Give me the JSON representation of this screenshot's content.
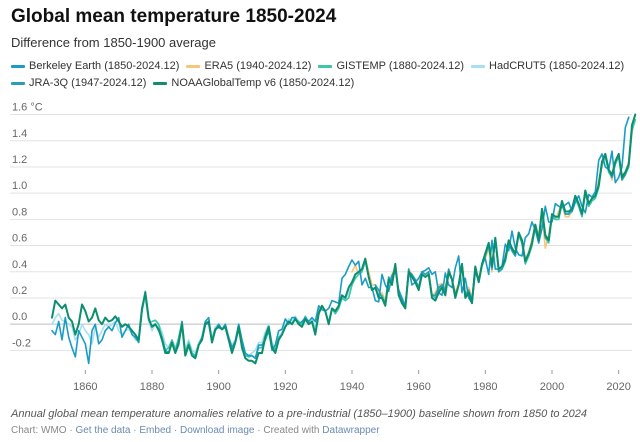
{
  "header": {
    "title": "Global mean temperature 1850-2024",
    "subtitle": "Difference from 1850-1900 average"
  },
  "caption": "Annual global mean temperature anomalies relative to a pre-industrial (1850–1900) baseline shown from 1850 to 2024",
  "footer": {
    "source": "Chart: WMO",
    "sep": " · ",
    "get_data": "Get the data",
    "embed": "Embed",
    "download": "Download image",
    "created": "Created with ",
    "datawrapper": "Datawrapper"
  },
  "colors": {
    "berkeley": "#1a9cc7",
    "era5": "#f7c57a",
    "gistemp": "#3cc5a6",
    "hadcrut": "#a7dff2",
    "jra": "#2a9fb0",
    "noaa": "#0c8f6e",
    "grid": "#e3e3e3",
    "axis_text": "#666666"
  },
  "chart_data": {
    "type": "line",
    "ylabel": "°C",
    "xlim": [
      1850,
      2024
    ],
    "ylim": [
      -0.35,
      1.65
    ],
    "x_ticks": [
      1860,
      1880,
      1900,
      1920,
      1940,
      1960,
      1980,
      2000,
      2020
    ],
    "y_ticks": [
      {
        "value": 1.6,
        "label": "1.6 °C"
      },
      {
        "value": 1.4,
        "label": "1.4"
      },
      {
        "value": 1.2,
        "label": "1.2"
      },
      {
        "value": 1.0,
        "label": "1.0"
      },
      {
        "value": 0.8,
        "label": "0.8"
      },
      {
        "value": 0.6,
        "label": "0.6"
      },
      {
        "value": 0.4,
        "label": "0.4"
      },
      {
        "value": 0.2,
        "label": "0.2"
      },
      {
        "value": 0.0,
        "label": "0.0"
      },
      {
        "value": -0.2,
        "label": "-0.2"
      }
    ],
    "grid": true,
    "legend_position": "top",
    "series": [
      {
        "name": "Berkeley Earth (1850-2024.12)",
        "color_key": "berkeley",
        "start": 1850,
        "values": [
          -0.05,
          -0.08,
          0.02,
          -0.12,
          0.05,
          -0.1,
          -0.18,
          -0.25,
          -0.05,
          -0.1,
          -0.15,
          -0.3,
          -0.05,
          0.0,
          -0.15,
          -0.12,
          -0.05,
          -0.02,
          -0.05,
          0.01,
          0.05,
          -0.1,
          -0.05,
          0.0,
          -0.08,
          -0.1,
          -0.14,
          0.1,
          0.25,
          0.05,
          -0.02,
          0.0,
          -0.05,
          -0.1,
          -0.2,
          -0.22,
          -0.14,
          -0.22,
          -0.16,
          0.02,
          -0.24,
          -0.16,
          -0.24,
          -0.25,
          -0.16,
          -0.1,
          0.02,
          0.05,
          -0.14,
          -0.05,
          0.0,
          -0.04,
          0.0,
          -0.1,
          -0.18,
          -0.13,
          0.0,
          -0.12,
          -0.22,
          -0.24,
          -0.24,
          -0.26,
          -0.16,
          -0.16,
          -0.12,
          -0.05,
          -0.2,
          -0.16,
          -0.05,
          -0.04,
          0.04,
          0.0,
          0.05,
          0.05,
          0.0,
          0.02,
          0.05,
          0.02,
          0.05,
          0.02,
          0.14,
          0.11,
          0.1,
          0.12,
          0.18,
          0.17,
          0.16,
          0.35,
          0.38,
          0.44,
          0.49,
          0.45,
          0.48,
          0.3,
          0.35,
          0.28,
          0.28,
          0.18,
          0.17,
          0.38,
          0.3,
          0.25,
          0.37,
          0.42,
          0.26,
          0.2,
          0.12,
          0.42,
          0.3,
          0.32,
          0.35,
          0.4,
          0.41,
          0.43,
          0.38,
          0.4,
          0.24,
          0.22,
          0.39,
          0.3,
          0.28,
          0.43,
          0.52,
          0.24,
          0.35,
          0.2,
          0.16,
          0.4,
          0.33,
          0.46,
          0.5,
          0.38,
          0.64,
          0.42,
          0.42,
          0.44,
          0.61,
          0.56,
          0.71,
          0.58,
          0.53,
          0.52,
          0.66,
          0.69,
          0.78,
          0.72,
          0.62,
          0.73,
          0.9,
          0.78,
          0.78,
          0.92,
          0.9,
          0.89,
          0.91,
          0.93,
          0.86,
          0.93,
          0.98,
          0.9,
          0.85,
          0.99,
          0.97,
          1.01,
          1.25,
          1.3,
          1.2,
          1.18,
          1.32,
          1.08,
          1.12,
          1.2,
          1.5,
          1.58
        ]
      },
      {
        "name": "ERA5 (1940-2024.12)",
        "color_key": "era5",
        "start": 1940,
        "values": [
          0.4,
          0.45,
          0.38,
          0.42,
          0.5,
          0.4,
          0.3,
          0.3,
          0.22,
          0.24,
          0.18,
          0.33,
          0.38,
          0.44,
          0.26,
          0.2,
          0.14,
          0.42,
          0.38,
          0.34,
          0.28,
          0.4,
          0.38,
          0.4,
          0.22,
          0.24,
          0.3,
          0.31,
          0.28,
          0.42,
          0.35,
          0.24,
          0.31,
          0.45,
          0.22,
          0.28,
          0.2,
          0.43,
          0.34,
          0.46,
          0.5,
          0.58,
          0.4,
          0.65,
          0.42,
          0.44,
          0.52,
          0.62,
          0.58,
          0.52,
          0.68,
          0.62,
          0.5,
          0.55,
          0.65,
          0.76,
          0.68,
          0.84,
          0.58,
          0.68,
          0.82,
          0.8,
          0.86,
          0.92,
          0.82,
          0.82,
          0.86,
          0.96,
          0.9,
          0.84,
          1.0,
          0.9,
          0.94,
          0.98,
          1.1,
          1.2,
          1.28,
          1.18,
          1.1,
          1.25,
          1.3,
          1.14,
          1.16,
          1.24,
          1.46,
          1.6
        ]
      },
      {
        "name": "GISTEMP (1880-2024.12)",
        "color_key": "gistemp",
        "start": 1880,
        "values": [
          0.02,
          0.03,
          0.0,
          -0.1,
          -0.2,
          -0.18,
          -0.12,
          -0.2,
          -0.1,
          0.02,
          -0.22,
          -0.14,
          -0.22,
          -0.24,
          -0.16,
          -0.12,
          0.0,
          0.0,
          -0.12,
          -0.04,
          0.0,
          -0.04,
          -0.02,
          -0.12,
          -0.2,
          -0.14,
          -0.04,
          -0.16,
          -0.24,
          -0.25,
          -0.24,
          -0.26,
          -0.18,
          -0.18,
          -0.08,
          -0.02,
          -0.16,
          -0.2,
          -0.1,
          -0.08,
          -0.02,
          0.02,
          0.0,
          0.04,
          0.02,
          0.0,
          0.06,
          0.0,
          0.02,
          -0.06,
          0.1,
          0.14,
          0.1,
          0.0,
          0.12,
          0.08,
          0.12,
          0.2,
          0.18,
          0.2,
          0.3,
          0.35,
          0.38,
          0.4,
          0.48,
          0.36,
          0.26,
          0.28,
          0.22,
          0.22,
          0.16,
          0.34,
          0.3,
          0.44,
          0.22,
          0.18,
          0.14,
          0.4,
          0.36,
          0.32,
          0.28,
          0.38,
          0.36,
          0.38,
          0.22,
          0.2,
          0.26,
          0.3,
          0.24,
          0.4,
          0.34,
          0.22,
          0.3,
          0.44,
          0.22,
          0.25,
          0.18,
          0.42,
          0.32,
          0.44,
          0.52,
          0.6,
          0.44,
          0.64,
          0.4,
          0.42,
          0.48,
          0.62,
          0.56,
          0.52,
          0.68,
          0.62,
          0.46,
          0.52,
          0.6,
          0.74,
          0.62,
          0.86,
          0.66,
          0.62,
          0.82,
          0.8,
          0.8,
          0.92,
          0.84,
          0.84,
          0.86,
          0.96,
          0.9,
          0.82,
          1.0,
          0.9,
          0.94,
          0.96,
          1.04,
          1.22,
          1.28,
          1.16,
          1.12,
          1.22,
          1.28,
          1.1,
          1.14,
          1.2,
          1.48,
          1.56
        ]
      },
      {
        "name": "HadCRUT5 (1850-2024.12)",
        "color_key": "hadcrut",
        "start": 1850,
        "values": [
          0.0,
          0.05,
          0.08,
          0.03,
          0.02,
          0.0,
          -0.02,
          -0.12,
          -0.08,
          0.0,
          -0.05,
          -0.08,
          -0.15,
          -0.02,
          -0.1,
          -0.05,
          0.0,
          -0.02,
          0.0,
          0.02,
          -0.05,
          -0.08,
          -0.05,
          -0.04,
          -0.07,
          -0.12,
          -0.12,
          0.1,
          0.2,
          0.02,
          -0.05,
          0.0,
          0.0,
          -0.06,
          -0.15,
          -0.18,
          -0.12,
          -0.18,
          -0.12,
          0.02,
          -0.2,
          -0.12,
          -0.2,
          -0.22,
          -0.14,
          -0.1,
          0.02,
          0.02,
          -0.1,
          -0.02,
          0.0,
          -0.04,
          0.0,
          -0.1,
          -0.16,
          -0.12,
          0.0,
          -0.16,
          -0.24,
          -0.24,
          -0.22,
          -0.2,
          -0.14,
          -0.14,
          -0.06,
          0.0,
          -0.14,
          -0.18,
          -0.1,
          -0.06,
          0.0,
          0.04,
          0.02,
          0.06,
          0.02,
          0.0,
          0.06,
          0.02,
          0.04,
          -0.02,
          0.1,
          0.14,
          0.1,
          0.02,
          0.12,
          0.08,
          0.12,
          0.2,
          0.18,
          0.25,
          0.3,
          0.35,
          0.38,
          0.4,
          0.48,
          0.36,
          0.26,
          0.28,
          0.22,
          0.22,
          0.16,
          0.34,
          0.3,
          0.44,
          0.22,
          0.18,
          0.14,
          0.4,
          0.36,
          0.32,
          0.28,
          0.38,
          0.36,
          0.38,
          0.22,
          0.2,
          0.26,
          0.3,
          0.24,
          0.4,
          0.34,
          0.22,
          0.3,
          0.44,
          0.22,
          0.25,
          0.18,
          0.42,
          0.32,
          0.44,
          0.52,
          0.6,
          0.44,
          0.64,
          0.4,
          0.42,
          0.48,
          0.62,
          0.56,
          0.52,
          0.68,
          0.62,
          0.46,
          0.52,
          0.6,
          0.74,
          0.62,
          0.86,
          0.66,
          0.62,
          0.82,
          0.8,
          0.8,
          0.92,
          0.84,
          0.84,
          0.86,
          0.96,
          0.9,
          0.82,
          1.0,
          0.9,
          0.94,
          0.96,
          1.04,
          1.22,
          1.28,
          1.16,
          1.12,
          1.22,
          1.28,
          1.1,
          1.14,
          1.2,
          1.48,
          1.56
        ]
      },
      {
        "name": "JRA-3Q (1947-2024.12)",
        "color_key": "jra",
        "start": 1947,
        "values": [
          0.3,
          0.26,
          0.2,
          0.16,
          0.36,
          0.32,
          0.42,
          0.24,
          0.2,
          0.14,
          0.4,
          0.38,
          0.34,
          0.28,
          0.4,
          0.38,
          0.4,
          0.22,
          0.22,
          0.28,
          0.3,
          0.26,
          0.42,
          0.34,
          0.22,
          0.3,
          0.46,
          0.22,
          0.26,
          0.18,
          0.44,
          0.32,
          0.46,
          0.52,
          0.62,
          0.42,
          0.66,
          0.4,
          0.42,
          0.48,
          0.62,
          0.56,
          0.52,
          0.7,
          0.62,
          0.48,
          0.54,
          0.62,
          0.76,
          0.64,
          0.88,
          0.66,
          0.64,
          0.84,
          0.82,
          0.82,
          0.94,
          0.84,
          0.84,
          0.88,
          0.98,
          0.92,
          0.84,
          1.02,
          0.92,
          0.96,
          0.98,
          1.06,
          1.24,
          1.3,
          1.18,
          1.12,
          1.24,
          1.3,
          1.1,
          1.14,
          1.22,
          1.5
        ]
      },
      {
        "name": "NOAAGlobalTemp v6 (1850-2024.12)",
        "color_key": "noaa",
        "start": 1850,
        "values": [
          0.05,
          0.18,
          0.15,
          0.12,
          0.15,
          0.05,
          0.02,
          -0.08,
          0.0,
          0.15,
          0.1,
          0.02,
          0.05,
          0.12,
          0.03,
          0.0,
          0.05,
          0.02,
          0.03,
          0.06,
          0.02,
          -0.02,
          0.0,
          -0.02,
          -0.05,
          -0.08,
          -0.12,
          0.12,
          0.24,
          0.04,
          -0.02,
          0.0,
          -0.04,
          -0.12,
          -0.22,
          -0.22,
          -0.14,
          -0.22,
          -0.14,
          0.0,
          -0.24,
          -0.16,
          -0.24,
          -0.26,
          -0.16,
          -0.12,
          0.0,
          0.02,
          -0.14,
          -0.04,
          -0.02,
          -0.04,
          -0.02,
          -0.12,
          -0.22,
          -0.14,
          -0.02,
          -0.18,
          -0.26,
          -0.28,
          -0.28,
          -0.3,
          -0.22,
          -0.22,
          -0.1,
          -0.02,
          -0.18,
          -0.22,
          -0.12,
          -0.08,
          -0.02,
          0.02,
          0.0,
          0.04,
          0.0,
          -0.02,
          0.04,
          0.0,
          0.02,
          -0.08,
          0.08,
          0.14,
          0.1,
          0.0,
          0.12,
          0.1,
          0.14,
          0.22,
          0.2,
          0.28,
          0.32,
          0.38,
          0.4,
          0.42,
          0.5,
          0.36,
          0.26,
          0.28,
          0.2,
          0.2,
          0.14,
          0.34,
          0.3,
          0.46,
          0.22,
          0.16,
          0.12,
          0.4,
          0.36,
          0.32,
          0.26,
          0.38,
          0.36,
          0.38,
          0.2,
          0.18,
          0.24,
          0.28,
          0.22,
          0.4,
          0.34,
          0.2,
          0.3,
          0.46,
          0.2,
          0.24,
          0.16,
          0.44,
          0.32,
          0.46,
          0.54,
          0.62,
          0.44,
          0.66,
          0.42,
          0.44,
          0.5,
          0.64,
          0.58,
          0.54,
          0.7,
          0.64,
          0.48,
          0.54,
          0.62,
          0.76,
          0.64,
          0.88,
          0.68,
          0.64,
          0.84,
          0.82,
          0.82,
          0.94,
          0.86,
          0.86,
          0.88,
          0.98,
          0.92,
          0.84,
          1.02,
          0.92,
          0.96,
          0.98,
          1.06,
          1.24,
          1.3,
          1.18,
          1.14,
          1.24,
          1.3,
          1.12,
          1.16,
          1.22,
          1.52,
          1.6
        ]
      }
    ]
  }
}
